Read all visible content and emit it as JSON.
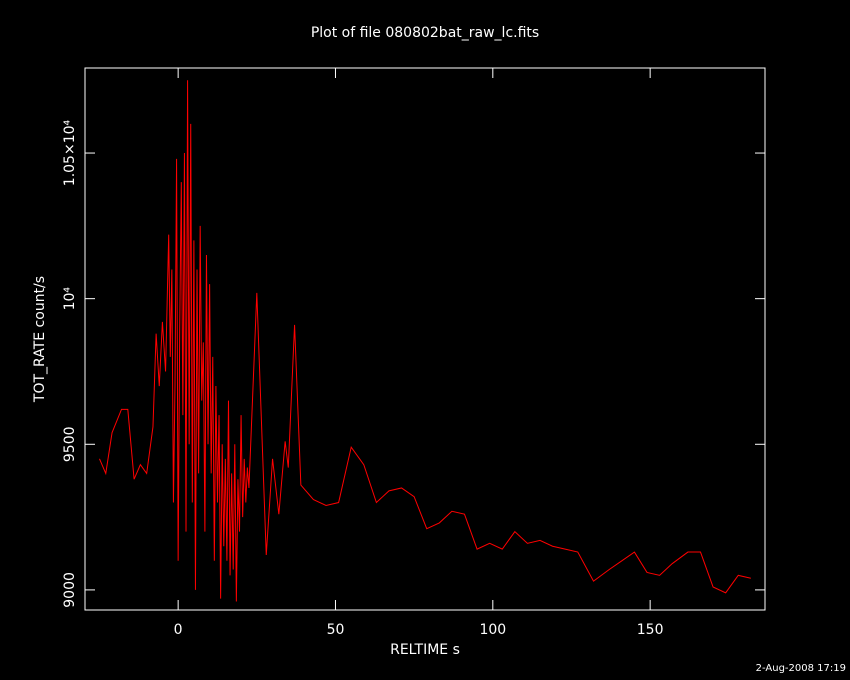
{
  "chart_data": {
    "type": "line",
    "title": "Plot of file 080802bat_raw_lc.fits",
    "x_label": "RELTIME  s",
    "y_label": "TOT_RATE  count/s",
    "footer": "2-Aug-2008 17:19",
    "color": "#ff0000",
    "x": [
      -25,
      -23,
      -21,
      -18,
      -16,
      -14,
      -12,
      -10,
      -8,
      -7,
      -6,
      -5,
      -4,
      -3,
      -2.5,
      -2,
      -1.5,
      -1,
      -0.5,
      0,
      0.5,
      1,
      1.5,
      2,
      2.5,
      3,
      3.5,
      4,
      4.5,
      5,
      5.5,
      6,
      6.5,
      7,
      7.5,
      8,
      8.5,
      9,
      9.5,
      10,
      10.5,
      11,
      11.5,
      12,
      12.5,
      13,
      13.5,
      14,
      14.5,
      15,
      15.5,
      16,
      16.5,
      17,
      17.5,
      18,
      18.5,
      19,
      19.5,
      20,
      20.5,
      21,
      21.5,
      22,
      22.5,
      25,
      28,
      30,
      32,
      34,
      35,
      37,
      39,
      43,
      47,
      51,
      55,
      59,
      63,
      67,
      71,
      75,
      79,
      83,
      87,
      91,
      95,
      99,
      103,
      107,
      111,
      115,
      119,
      123,
      127,
      132,
      137,
      141,
      145,
      149,
      153,
      157,
      162,
      166,
      170,
      174,
      178,
      182
    ],
    "values": [
      9450,
      9400,
      9540,
      9620,
      9620,
      9380,
      9430,
      9400,
      9560,
      9880,
      9700,
      9920,
      9750,
      10220,
      9800,
      10100,
      9300,
      9700,
      10480,
      9100,
      9900,
      10400,
      9600,
      10500,
      9200,
      10750,
      9500,
      10600,
      9300,
      10200,
      9000,
      10100,
      9400,
      10250,
      9650,
      9850,
      9200,
      10150,
      9500,
      10050,
      9400,
      9800,
      9100,
      9700,
      9300,
      9600,
      8970,
      9500,
      9150,
      9450,
      9100,
      9650,
      9050,
      9400,
      9070,
      9500,
      8960,
      9380,
      9200,
      9600,
      9250,
      9450,
      9300,
      9420,
      9350,
      10020,
      9120,
      9450,
      9260,
      9510,
      9420,
      9910,
      9360,
      9310,
      9290,
      9300,
      9490,
      9430,
      9300,
      9340,
      9350,
      9320,
      9210,
      9230,
      9270,
      9260,
      9140,
      9160,
      9140,
      9200,
      9160,
      9170,
      9150,
      9140,
      9130,
      9030,
      9070,
      9100,
      9130,
      9060,
      9050,
      9090,
      9130,
      9130,
      9010,
      8990,
      9050,
      9040
    ],
    "xlim": [
      -29.6,
      186.5
    ],
    "xticks": [
      0,
      50,
      100,
      150
    ],
    "ylim": [
      8931,
      10792
    ],
    "yticks": [
      9000,
      9500,
      {
        "value": 10000,
        "label": "10⁴"
      },
      {
        "value": 10500,
        "label": "1.05×10⁴"
      }
    ]
  }
}
